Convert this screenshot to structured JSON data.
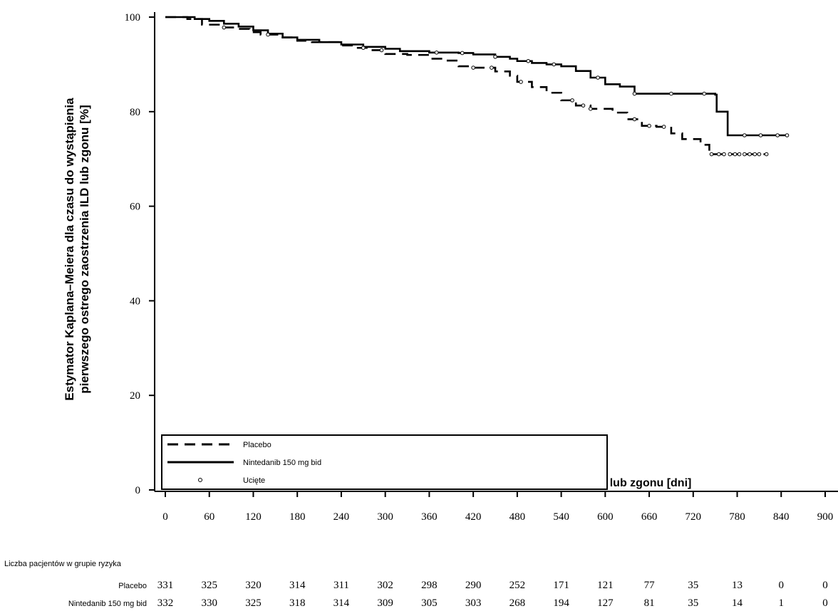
{
  "chart_data": {
    "type": "line",
    "title": "",
    "xlabel": "Czas do wystąpienia pierwszego nagłego zaostrzenia ILD lub zgonu [dni]",
    "ylabel_line1": "Estymator Kaplana–Meiera dla czasu do wystąpienia",
    "ylabel_line2": "pierwszego ostrego zaostrzenia ILD lub zgonu [%]",
    "xlim": [
      0,
      900
    ],
    "ylim": [
      0,
      100
    ],
    "x_ticks": [
      "0",
      "60",
      "120",
      "180",
      "240",
      "300",
      "360",
      "420",
      "480",
      "540",
      "600",
      "660",
      "720",
      "780",
      "840",
      "900"
    ],
    "y_ticks": [
      "0",
      "20",
      "40",
      "60",
      "80",
      "100"
    ],
    "grid": false,
    "legend_position": "bottom-left",
    "legend": {
      "placebo": "Placebo",
      "nintedanib": "Nintedanib 150 mg bid",
      "censored": "Ucięte"
    },
    "series": [
      {
        "name": "Placebo",
        "style": "dashed",
        "points": [
          [
            0,
            100
          ],
          [
            30,
            99.6
          ],
          [
            50,
            98.4
          ],
          [
            80,
            97.8
          ],
          [
            100,
            97.5
          ],
          [
            115,
            96.8
          ],
          [
            130,
            96.3
          ],
          [
            160,
            95.7
          ],
          [
            180,
            95
          ],
          [
            200,
            94.7
          ],
          [
            240,
            94
          ],
          [
            260,
            93.5
          ],
          [
            280,
            93
          ],
          [
            300,
            92.2
          ],
          [
            330,
            92
          ],
          [
            360,
            91.2
          ],
          [
            380,
            90.8
          ],
          [
            400,
            89.6
          ],
          [
            420,
            89.3
          ],
          [
            450,
            88.5
          ],
          [
            470,
            87.6
          ],
          [
            480,
            86.3
          ],
          [
            500,
            85.2
          ],
          [
            520,
            84
          ],
          [
            540,
            82.4
          ],
          [
            560,
            81.3
          ],
          [
            580,
            80.6
          ],
          [
            610,
            79.8
          ],
          [
            630,
            78.4
          ],
          [
            650,
            77
          ],
          [
            670,
            76.8
          ],
          [
            690,
            75.4
          ],
          [
            705,
            74.2
          ],
          [
            730,
            73
          ],
          [
            742,
            71
          ],
          [
            820,
            71
          ]
        ]
      },
      {
        "name": "Nintedanib 150 mg bid",
        "style": "solid",
        "points": [
          [
            0,
            100
          ],
          [
            40,
            99.6
          ],
          [
            60,
            99.2
          ],
          [
            80,
            98.6
          ],
          [
            100,
            98
          ],
          [
            120,
            97.2
          ],
          [
            140,
            96.5
          ],
          [
            160,
            95.7
          ],
          [
            180,
            95.2
          ],
          [
            210,
            94.7
          ],
          [
            240,
            94.2
          ],
          [
            270,
            93.7
          ],
          [
            300,
            93.3
          ],
          [
            320,
            92.8
          ],
          [
            360,
            92.5
          ],
          [
            400,
            92.4
          ],
          [
            420,
            92.1
          ],
          [
            450,
            91.6
          ],
          [
            470,
            91.2
          ],
          [
            480,
            90.7
          ],
          [
            500,
            90.3
          ],
          [
            520,
            90
          ],
          [
            540,
            89.6
          ],
          [
            560,
            88.6
          ],
          [
            580,
            87.2
          ],
          [
            600,
            85.8
          ],
          [
            620,
            85.3
          ],
          [
            640,
            83.8
          ],
          [
            700,
            83.8
          ],
          [
            750,
            83.6
          ],
          [
            752,
            80
          ],
          [
            765,
            80
          ],
          [
            767,
            75
          ],
          [
            850,
            75
          ]
        ]
      }
    ],
    "censored": {
      "placebo_x": [
        80,
        140,
        270,
        295,
        420,
        445,
        485,
        555,
        570,
        580,
        640,
        660,
        680,
        745,
        755,
        762,
        770,
        777,
        783,
        790,
        797,
        804,
        810,
        820
      ],
      "nintedanib_x": [
        370,
        405,
        450,
        495,
        530,
        590,
        640,
        690,
        735,
        790,
        812,
        835,
        848
      ]
    },
    "risk_table": {
      "title": "Liczba pacjentów w grupie ryzyka",
      "rows": [
        {
          "label": "Placebo",
          "values": [
            "331",
            "325",
            "320",
            "314",
            "311",
            "302",
            "298",
            "290",
            "252",
            "171",
            "121",
            "77",
            "35",
            "13",
            "0",
            "0"
          ]
        },
        {
          "label": "Nintedanib 150 mg bid",
          "values": [
            "332",
            "330",
            "325",
            "318",
            "314",
            "309",
            "305",
            "303",
            "268",
            "194",
            "127",
            "81",
            "35",
            "14",
            "1",
            "0"
          ]
        }
      ]
    }
  }
}
